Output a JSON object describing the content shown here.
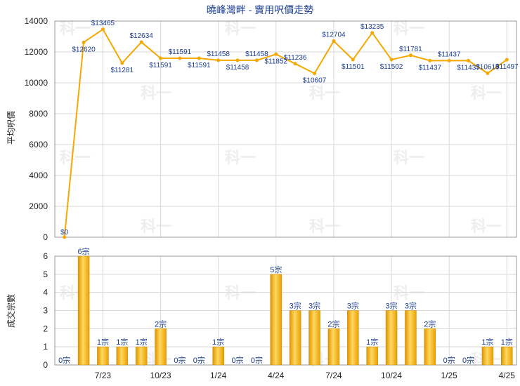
{
  "chart_data": [
    {
      "type": "line",
      "title": "曉峰灣畔 - 實用呎價走勢",
      "ylabel": "平均呎價",
      "ylim": [
        0,
        14000
      ],
      "yticks": [
        0,
        2000,
        4000,
        6000,
        8000,
        10000,
        12000,
        14000
      ],
      "grid": true,
      "color": "#f5a800",
      "values": [
        0,
        12620,
        13465,
        11281,
        12634,
        11591,
        11591,
        11591,
        11458,
        11458,
        11458,
        11852,
        11236,
        10607,
        12704,
        11501,
        13235,
        11502,
        11781,
        11437,
        11437,
        11437,
        10619,
        11497
      ],
      "labels": [
        "$0",
        "$12620",
        "$13465",
        "$11281",
        "$12634",
        "$11591",
        "$11591",
        "$11591",
        "$11458",
        "$11458",
        "$11458",
        "$11852",
        "$11236",
        "$10607",
        "$12704",
        "$11501",
        "$13235",
        "$11502",
        "$11781",
        "$11437",
        "$11437",
        "$11437",
        "$10619",
        "$11497"
      ]
    },
    {
      "type": "bar",
      "ylabel": "成交宗數",
      "ylim": [
        0,
        6
      ],
      "yticks": [
        0,
        1,
        2,
        3,
        4,
        5,
        6
      ],
      "grid": true,
      "color": "#f5b000",
      "values": [
        0,
        6,
        1,
        1,
        1,
        2,
        0,
        0,
        1,
        0,
        0,
        5,
        3,
        3,
        2,
        3,
        1,
        3,
        3,
        2,
        0,
        0,
        1,
        1
      ],
      "labels": [
        "0宗",
        "6宗",
        "1宗",
        "1宗",
        "1宗",
        "2宗",
        "0宗",
        "0宗",
        "1宗",
        "0宗",
        "0宗",
        "5宗",
        "3宗",
        "3宗",
        "2宗",
        "3宗",
        "1宗",
        "3宗",
        "3宗",
        "2宗",
        "0宗",
        "0宗",
        "1宗",
        "1宗"
      ],
      "xticks": [
        {
          "label": "7/23",
          "index": 2
        },
        {
          "label": "10/23",
          "index": 5
        },
        {
          "label": "1/24",
          "index": 8
        },
        {
          "label": "4/24",
          "index": 11
        },
        {
          "label": "7/24",
          "index": 14
        },
        {
          "label": "10/24",
          "index": 17
        },
        {
          "label": "1/25",
          "index": 20
        },
        {
          "label": "4/25",
          "index": 23
        }
      ]
    }
  ],
  "watermark": "科一"
}
